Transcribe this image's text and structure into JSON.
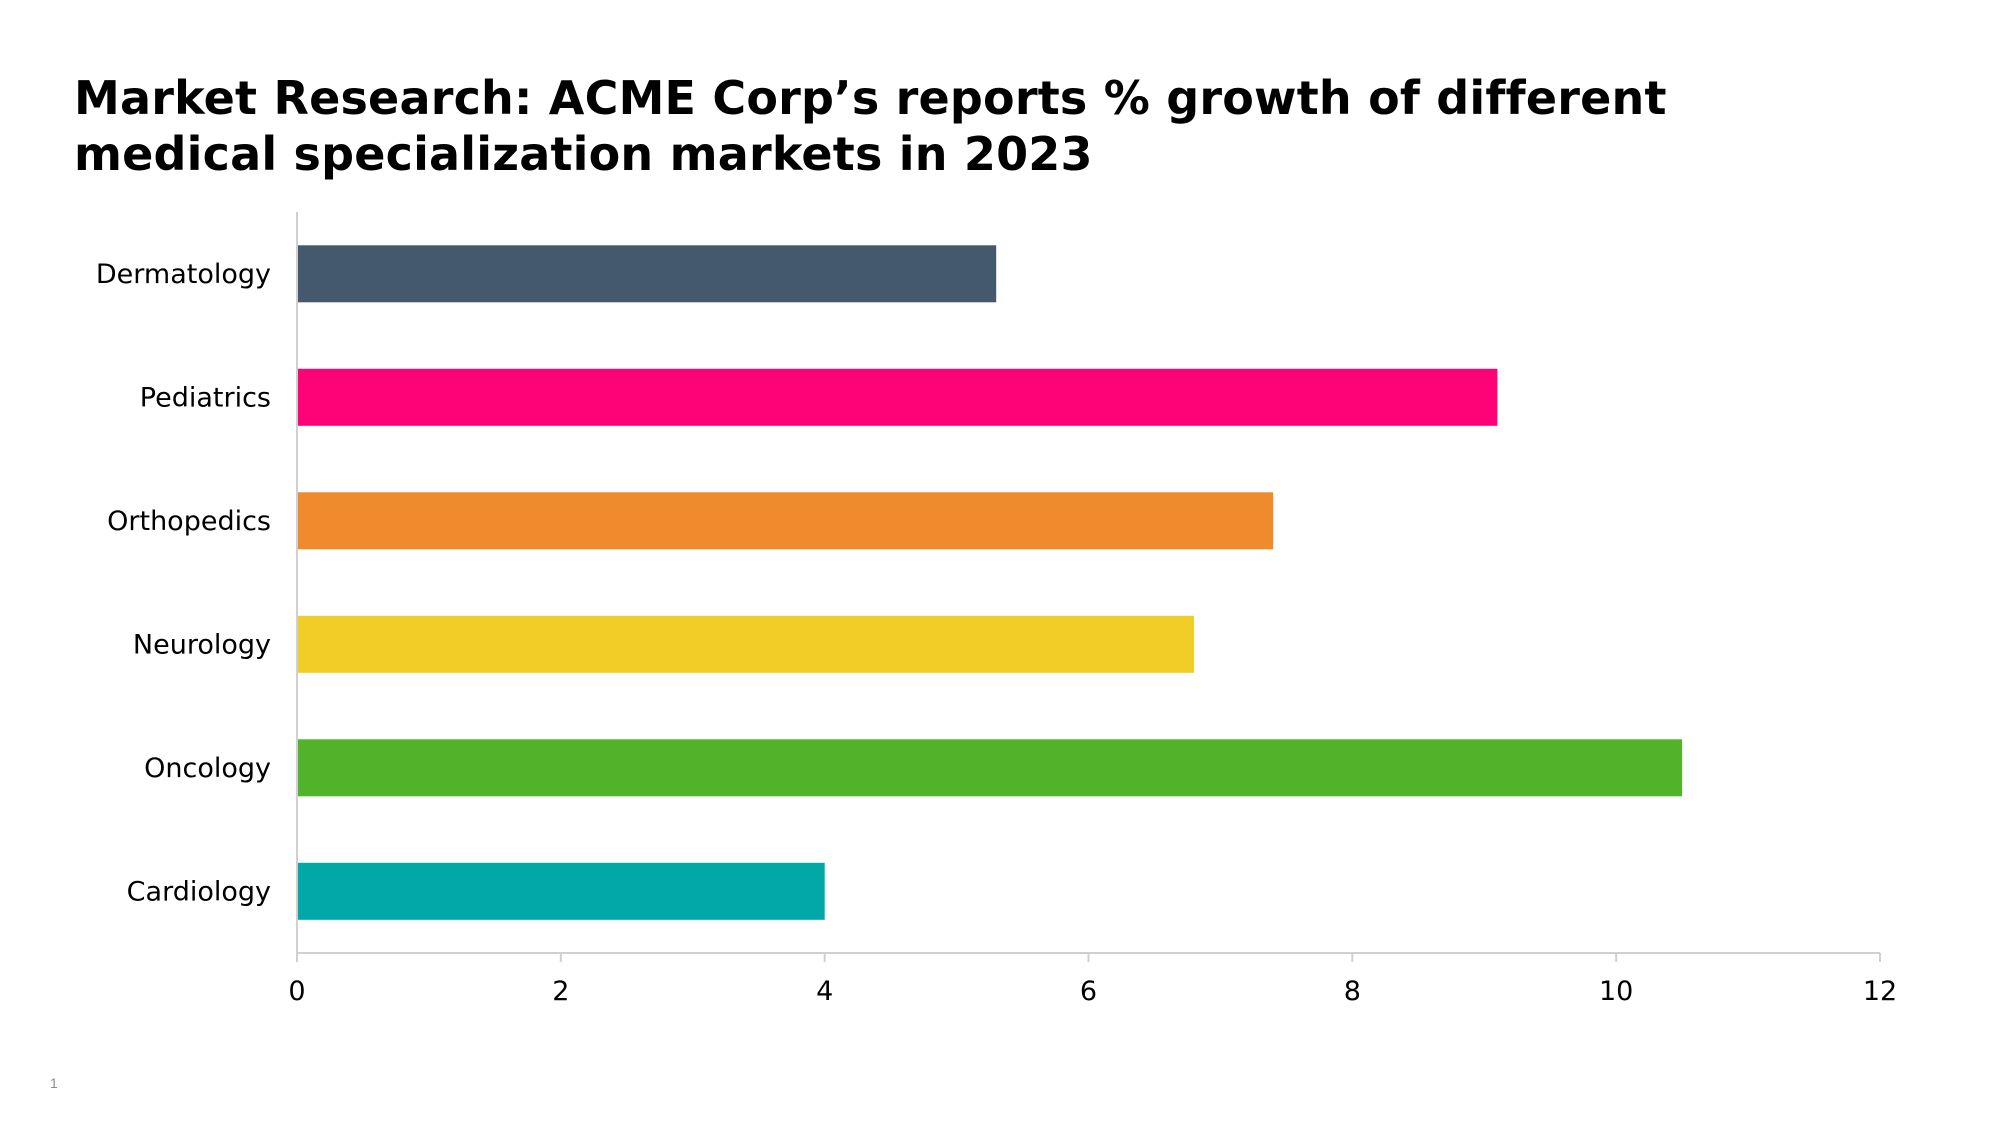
{
  "slide": {
    "title": "Market Research: ACME Corp’s reports % growth of different medical specialization markets in 2023",
    "page_number": "1"
  },
  "chart_data": {
    "type": "bar",
    "orientation": "horizontal",
    "title": "",
    "xlabel": "",
    "ylabel": "",
    "categories": [
      "Dermatology",
      "Pediatrics",
      "Orthopedics",
      "Neurology",
      "Oncology",
      "Cardiology"
    ],
    "values": [
      5.3,
      9.1,
      7.4,
      6.8,
      10.5,
      4.0
    ],
    "colors": [
      "#44596b",
      "#fe0278",
      "#ef8b2c",
      "#f0cd27",
      "#52b32a",
      "#02a8a8"
    ],
    "xlim": [
      0,
      12
    ],
    "xticks": [
      "0",
      "2",
      "4",
      "6",
      "8",
      "10",
      "12"
    ],
    "grid": false,
    "legend": "none"
  }
}
